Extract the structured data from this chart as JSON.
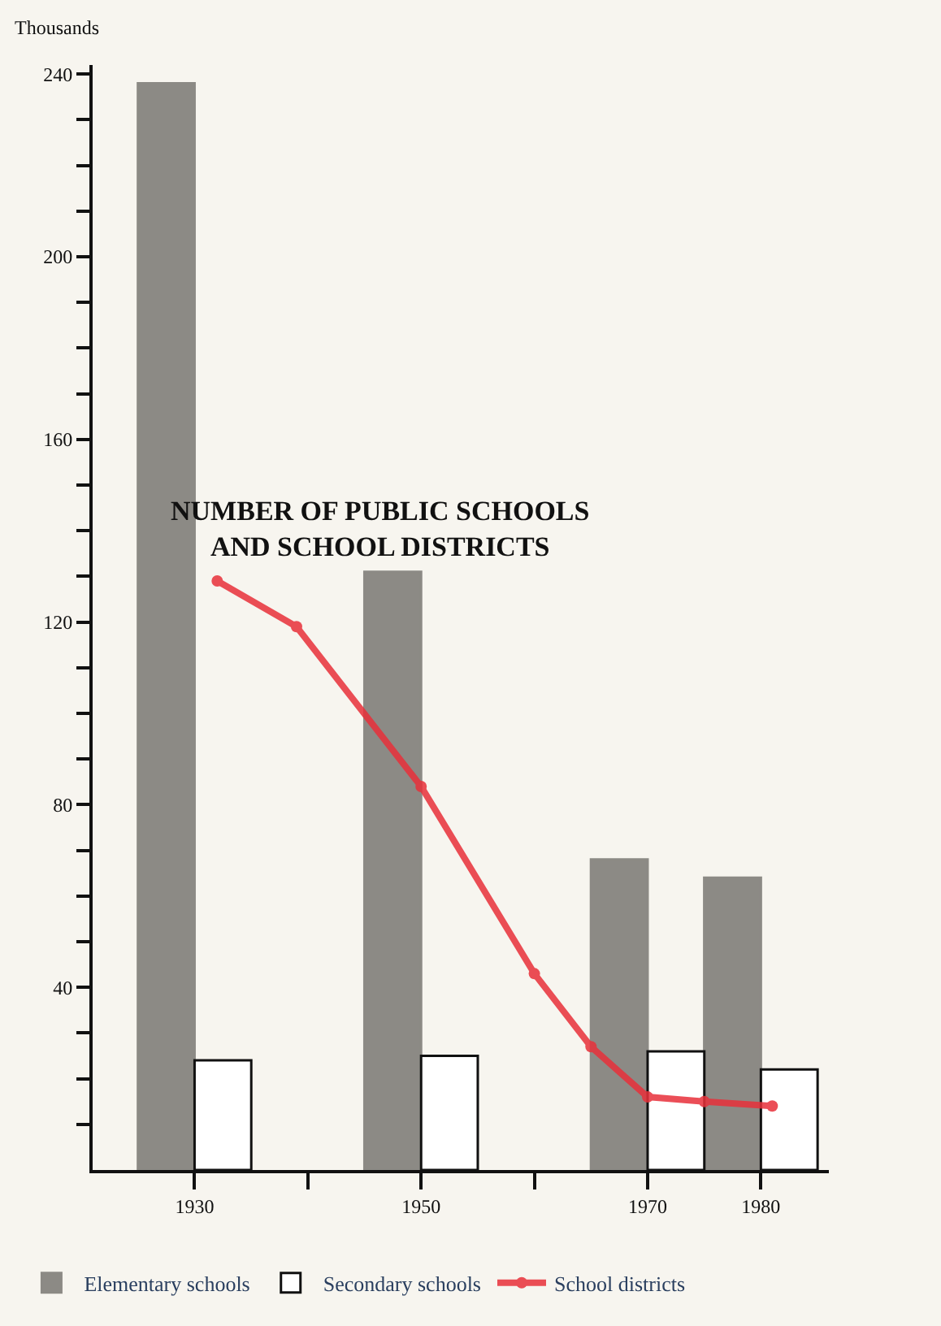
{
  "chart_data": {
    "type": "bar",
    "title": "NUMBER OF PUBLIC SCHOOLS AND SCHOOL DISTRICTS",
    "ylabel": "Thousands",
    "x": [
      1930,
      1950,
      1970,
      1980
    ],
    "series": [
      {
        "name": "Elementary schools",
        "color": "#8c8a85",
        "values": [
          238,
          131,
          68,
          64
        ]
      },
      {
        "name": "Secondary schools",
        "color": "#ffffff",
        "values": [
          24,
          25,
          26,
          22
        ]
      },
      {
        "name": "School districts",
        "type": "line",
        "color": "#e8303a",
        "x": [
          1932,
          1939,
          1950,
          1960,
          1965,
          1970,
          1975,
          1981
        ],
        "values": [
          129,
          119,
          84,
          43,
          27,
          16,
          15,
          14
        ]
      }
    ],
    "xlim": [
      1921,
      1986
    ],
    "xticks": [
      1930,
      {
        "value": 1940,
        "label": null
      },
      1950,
      {
        "value": 1960,
        "label": null
      },
      1970,
      1980
    ],
    "ylim": [
      0,
      242
    ],
    "yticks": [
      {
        "value": 10,
        "label": null
      },
      {
        "value": 20,
        "label": null
      },
      {
        "value": 30,
        "label": null
      },
      40,
      {
        "value": 50,
        "label": null
      },
      {
        "value": 60,
        "label": null
      },
      {
        "value": 70,
        "label": null
      },
      80,
      {
        "value": 90,
        "label": null
      },
      {
        "value": 100,
        "label": null
      },
      {
        "value": 110,
        "label": null
      },
      120,
      {
        "value": 130,
        "label": null
      },
      {
        "value": 140,
        "label": null
      },
      {
        "value": 150,
        "label": null
      },
      160,
      {
        "value": 170,
        "label": null
      },
      {
        "value": 180,
        "label": null
      },
      {
        "value": 190,
        "label": null
      },
      200,
      {
        "value": 210,
        "label": null
      },
      {
        "value": 220,
        "label": null
      },
      {
        "value": 230,
        "label": null
      },
      240
    ],
    "grid": false,
    "legend": "bottom",
    "marker": "circle",
    "line_style": "solid"
  }
}
